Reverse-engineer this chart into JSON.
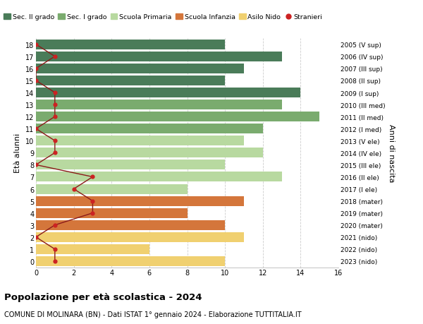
{
  "ages": [
    18,
    17,
    16,
    15,
    14,
    13,
    12,
    11,
    10,
    9,
    8,
    7,
    6,
    5,
    4,
    3,
    2,
    1,
    0
  ],
  "right_labels": [
    "2005 (V sup)",
    "2006 (IV sup)",
    "2007 (III sup)",
    "2008 (II sup)",
    "2009 (I sup)",
    "2010 (III med)",
    "2011 (II med)",
    "2012 (I med)",
    "2013 (V ele)",
    "2014 (IV ele)",
    "2015 (III ele)",
    "2016 (II ele)",
    "2017 (I ele)",
    "2018 (mater)",
    "2019 (mater)",
    "2020 (mater)",
    "2021 (nido)",
    "2022 (nido)",
    "2023 (nido)"
  ],
  "bar_values": [
    10,
    13,
    11,
    10,
    14,
    13,
    15,
    12,
    11,
    12,
    10,
    13,
    8,
    11,
    8,
    10,
    11,
    6,
    10
  ],
  "bar_colors": [
    "#4a7c59",
    "#4a7c59",
    "#4a7c59",
    "#4a7c59",
    "#4a7c59",
    "#7aab6e",
    "#7aab6e",
    "#7aab6e",
    "#b8d9a0",
    "#b8d9a0",
    "#b8d9a0",
    "#b8d9a0",
    "#b8d9a0",
    "#d4763b",
    "#d4763b",
    "#d4763b",
    "#f0d070",
    "#f0d070",
    "#f0d070"
  ],
  "stranieri_values": [
    0,
    1,
    0,
    0,
    1,
    1,
    1,
    0,
    1,
    1,
    0,
    3,
    2,
    3,
    3,
    1,
    0,
    1,
    1
  ],
  "legend_labels": [
    "Sec. II grado",
    "Sec. I grado",
    "Scuola Primaria",
    "Scuola Infanzia",
    "Asilo Nido",
    "Stranieri"
  ],
  "legend_colors": [
    "#4a7c59",
    "#7aab6e",
    "#b8d9a0",
    "#d4763b",
    "#f0d070",
    "#cc2222"
  ],
  "stranieri_line_color": "#8b1a1a",
  "stranieri_dot_color": "#cc2222",
  "ylabel": "Età alunni",
  "right_ylabel": "Anni di nascita",
  "title": "Popolazione per età scolastica - 2024",
  "subtitle": "COMUNE DI MOLINARA (BN) - Dati ISTAT 1° gennaio 2024 - Elaborazione TUTTITALIA.IT",
  "xlim": [
    0,
    16
  ],
  "xticks": [
    0,
    2,
    4,
    6,
    8,
    10,
    12,
    14,
    16
  ],
  "background_color": "#ffffff",
  "grid_color": "#cccccc"
}
